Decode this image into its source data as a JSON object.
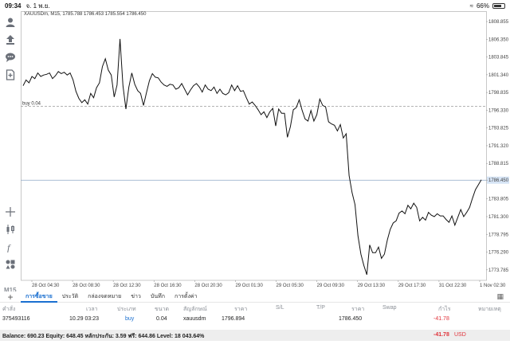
{
  "status_bar": {
    "time": "09:34",
    "date": "จ. 1 พ.ย.",
    "battery": "66%"
  },
  "toolbar": {
    "timeframe": "M15",
    "icons": [
      "user-icon",
      "order-icon",
      "chat-icon",
      "add-document-icon",
      "crosshair-icon",
      "candles-icon",
      "function-icon",
      "objects-icon"
    ]
  },
  "chart": {
    "header": "XAUUSDm, M15, 1785.788 1786.453 1785.554 1786.450",
    "order_line_label": "buy 0.04",
    "order_price": 1796.894,
    "current_price": 1786.45,
    "current_price_label": "1786.450",
    "price_ticks": [
      "1808.855",
      "1806.350",
      "1803.845",
      "1801.340",
      "1798.835",
      "1796.330",
      "1793.825",
      "1791.320",
      "1788.815",
      "1786.450",
      "1783.805",
      "1781.300",
      "1778.795",
      "1776.290",
      "1773.785"
    ],
    "time_ticks": [
      "28 Oct 04:30",
      "28 Oct 08:30",
      "28 Oct 12:30",
      "28 Oct 16:30",
      "28 Oct 20:30",
      "29 Oct 01:30",
      "29 Oct 05:30",
      "29 Oct 09:30",
      "29 Oct 13:30",
      "29 Oct 17:30",
      "31 Oct 22:30",
      "1 Nov 02:30"
    ]
  },
  "chart_data": {
    "type": "line",
    "title": "XAUUSDm, M15, 1785.788 1786.453 1785.554 1786.450",
    "xlabel": "",
    "ylabel": "",
    "ylim": [
      1772.3,
      1810.1
    ],
    "x_ticks": [
      "28 Oct 04:30",
      "28 Oct 08:30",
      "28 Oct 12:30",
      "28 Oct 16:30",
      "28 Oct 20:30",
      "29 Oct 01:30",
      "29 Oct 05:30",
      "29 Oct 09:30",
      "29 Oct 13:30",
      "29 Oct 17:30",
      "31 Oct 22:30",
      "1 Nov 02:30"
    ],
    "series": [
      {
        "values": [
          1799.8,
          1800.6,
          1800.2,
          1801.1,
          1800.8,
          1801.6,
          1801.1,
          1801.3,
          1801.4,
          1801.6,
          1800.8,
          1801.2,
          1801.8,
          1801.5,
          1801.7,
          1801.3,
          1801.6,
          1800.6,
          1799.0,
          1798.0,
          1797.4,
          1797.8,
          1797.2,
          1798.7,
          1798.1,
          1799.5,
          1800.2,
          1802.5,
          1803.6,
          1802.0,
          1801.3,
          1798.2,
          1799.9,
          1806.4,
          1799.8,
          1796.5,
          1799.6,
          1801.6,
          1800.0,
          1799.1,
          1798.7,
          1797.0,
          1798.8,
          1800.5,
          1801.5,
          1801.0,
          1800.9,
          1800.3,
          1799.9,
          1799.7,
          1800.0,
          1799.9,
          1799.3,
          1799.5,
          1800.1,
          1799.3,
          1798.5,
          1799.2,
          1799.8,
          1800.1,
          1799.6,
          1798.9,
          1799.9,
          1799.3,
          1799.1,
          1799.6,
          1798.7,
          1799.3,
          1798.7,
          1798.5,
          1798.8,
          1799.9,
          1799.1,
          1799.8,
          1799.0,
          1799.1,
          1798.1,
          1797.2,
          1797.5,
          1797.0,
          1796.4,
          1795.7,
          1796.1,
          1795.3,
          1796.1,
          1796.6,
          1794.1,
          1796.5,
          1795.9,
          1795.9,
          1792.5,
          1794.0,
          1796.4,
          1796.7,
          1797.8,
          1796.3,
          1795.1,
          1794.8,
          1796.3,
          1794.8,
          1795.7,
          1797.9,
          1797.0,
          1796.8,
          1794.7,
          1794.4,
          1794.2,
          1793.4,
          1794.3,
          1792.4,
          1793.0,
          1787.1,
          1784.7,
          1783.0,
          1778.6,
          1776.0,
          1774.4,
          1773.1,
          1777.3,
          1776.2,
          1776.2,
          1777.0,
          1775.4,
          1776.0,
          1778.0,
          1779.5,
          1780.4,
          1780.7,
          1781.8,
          1782.1,
          1781.7,
          1782.9,
          1782.4,
          1783.2,
          1782.6,
          1780.7,
          1781.2,
          1780.8,
          1781.9,
          1781.5,
          1781.3,
          1781.7,
          1781.4,
          1781.4,
          1780.9,
          1780.5,
          1781.4,
          1780.1,
          1781.2,
          1782.3,
          1781.3,
          1781.9,
          1782.6,
          1783.9,
          1785.1,
          1785.8,
          1786.5
        ]
      }
    ]
  },
  "positions": {
    "tabs": [
      "การซื้อขาย",
      "ประวัติ",
      "กล่องจดหมาย",
      "ข่าว",
      "บันทึก",
      "การตั้งค่า"
    ],
    "active_tab": 0,
    "columns": [
      "คำสั่ง",
      "เวลา",
      "ประเภท",
      "ขนาด",
      "สัญลักษณ์",
      "ราคา",
      "S/L",
      "T/P",
      "ราคา",
      "Swap",
      "กำไร",
      "หมายเหตุ"
    ],
    "rows": [
      {
        "order": "375493116",
        "time": "10.29 03:23",
        "type": "buy",
        "size": "0.04",
        "symbol": "xauusdm",
        "price": "1796.894",
        "sl": "",
        "tp": "",
        "current_price": "1786.450",
        "swap": "",
        "profit": "-41.78",
        "comment": ""
      }
    ],
    "balance_text": "Balance: 690.23 Equity: 648.45 หลักประกัน: 3.59 ฟรี: 644.86 Level: 18 043.64%",
    "total_profit": "-41.78",
    "currency": "USD"
  }
}
